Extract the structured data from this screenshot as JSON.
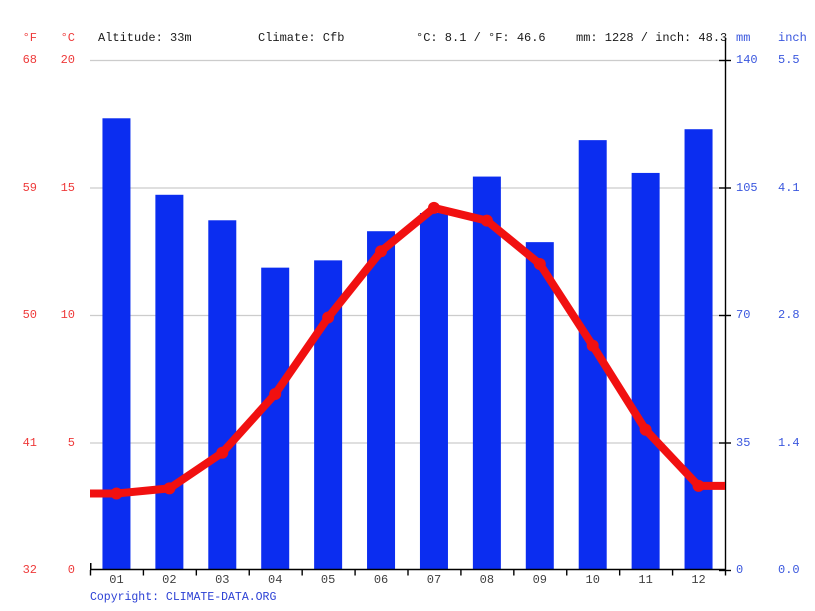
{
  "header": {
    "unit_f": "°F",
    "unit_c": "°C",
    "altitude": "Altitude: 33m",
    "climate": "Climate: Cfb",
    "temp_summary": "°C: 8.1 / °F: 46.6",
    "precip_summary": "mm: 1228 / inch: 48.3",
    "unit_mm": "mm",
    "unit_inch": "inch"
  },
  "footer": {
    "copyright_label": "Copyright:",
    "link_text": "CLIMATE-DATA.ORG"
  },
  "chart_data": {
    "type": "bar+line combo climate graph",
    "categories": [
      "01",
      "02",
      "03",
      "04",
      "05",
      "06",
      "07",
      "08",
      "09",
      "10",
      "11",
      "12"
    ],
    "series": [
      {
        "name": "precipitation",
        "type": "bar",
        "unit": "mm",
        "values": [
          124,
          103,
          96,
          83,
          85,
          93,
          98,
          108,
          90,
          118,
          109,
          121
        ]
      },
      {
        "name": "temperature",
        "type": "line",
        "unit": "°C",
        "values": [
          3.0,
          3.2,
          4.6,
          6.9,
          9.9,
          12.5,
          14.2,
          13.7,
          12.0,
          8.8,
          5.5,
          3.3
        ]
      }
    ],
    "annual_precip_mm": 1228,
    "mean_temp_c": 8.1,
    "axes": {
      "left_f_ticks": [
        "68",
        "59",
        "50",
        "41",
        "32"
      ],
      "left_c_ticks": [
        "20",
        "15",
        "10",
        "5",
        "0"
      ],
      "right_mm_ticks": [
        "140",
        "105",
        "70",
        "35",
        "0"
      ],
      "right_inch_ticks": [
        "5.5",
        "4.1",
        "2.8",
        "1.4",
        "0.0"
      ],
      "temp_axis_range_c": [
        0,
        20
      ],
      "precip_axis_range_mm": [
        0,
        140
      ]
    },
    "grid": true,
    "legend_position": "none"
  },
  "colors": {
    "bar_blue": "#0b2df0",
    "line_red": "#f11010",
    "red_text": "#ee3a3a",
    "blue_text": "#3a57de",
    "link_blue": "#2a3fd4",
    "grid_gray": "#cccccc",
    "axis_black": "#000000",
    "month_text": "#3f3f3f",
    "header_black": "#1a1a1a"
  }
}
